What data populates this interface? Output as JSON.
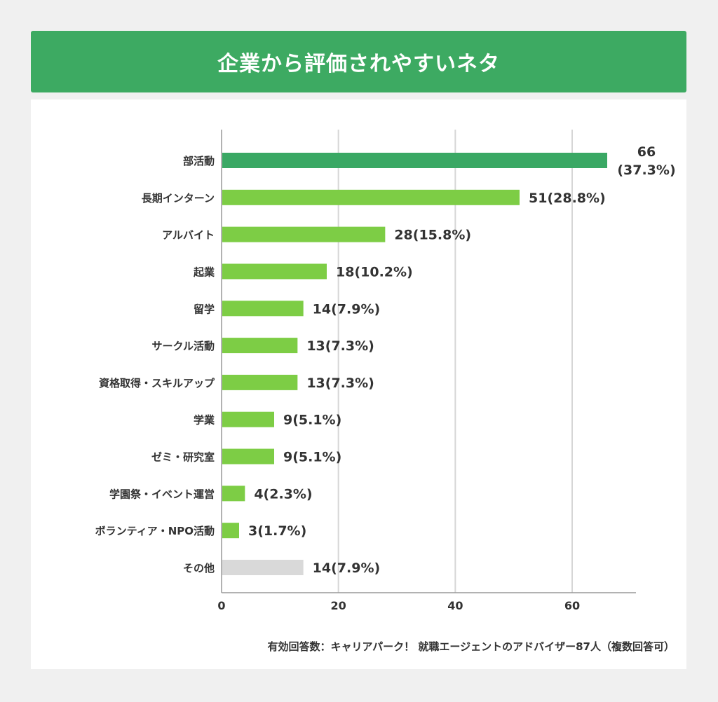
{
  "chart_data": {
    "type": "bar",
    "orientation": "horizontal",
    "title": "企業から評価されやすいネタ",
    "categories": [
      "部活動",
      "長期インターン",
      "アルバイト",
      "起業",
      "留学",
      "サークル活動",
      "資格取得・スキルアップ",
      "学業",
      "ゼミ・研究室",
      "学園祭・イベント運営",
      "ボランティア・NPO活動",
      "その他"
    ],
    "values": [
      66,
      51,
      28,
      18,
      14,
      13,
      13,
      9,
      9,
      4,
      3,
      14
    ],
    "percents": [
      "37.3%",
      "28.8%",
      "15.8%",
      "10.2%",
      "7.9%",
      "7.3%",
      "7.3%",
      "5.1%",
      "5.1%",
      "2.3%",
      "1.7%",
      "7.9%"
    ],
    "data_labels": [
      "66",
      "51(28.8%)",
      "28(15.8%)",
      "18(10.2%)",
      "14(7.9%)",
      "13(7.3%)",
      "13(7.3%)",
      "9(5.1%)",
      "9(5.1%)",
      "4(2.3%)",
      "3(1.7%)",
      "14(7.9%)"
    ],
    "first_label_lines": [
      "66",
      "(37.3%)"
    ],
    "bar_colors": [
      "#3aa864",
      "#7dcd45",
      "#7dcd45",
      "#7dcd45",
      "#7dcd45",
      "#7dcd45",
      "#7dcd45",
      "#7dcd45",
      "#7dcd45",
      "#7dcd45",
      "#7dcd45",
      "#d9d9d9"
    ],
    "xticks": [
      0,
      20,
      40,
      60
    ],
    "xlim": [
      0,
      71
    ],
    "grid": true,
    "xlabel": "",
    "ylabel": "",
    "note": "有効回答数：キャリアパーク！ 就職エージェントのアドバイザー87人（複数回答可）"
  }
}
